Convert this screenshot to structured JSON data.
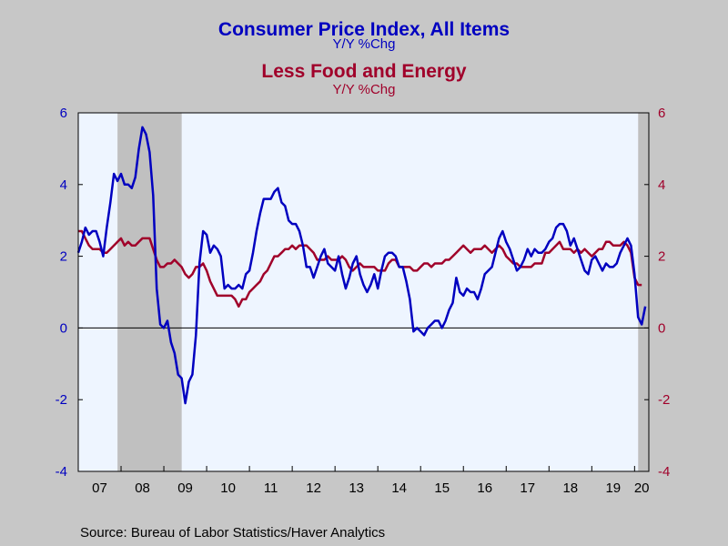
{
  "chart_data": {
    "type": "line",
    "title": "Consumer Price Index, All Items",
    "title_subtitle": "Y/Y %Chg",
    "title2": "Less Food and Energy",
    "title2_subtitle": "Y/Y %Chg",
    "source": "Source:  Bureau of Labor Statistics/Haver Analytics",
    "ylim_left": [
      -4,
      6
    ],
    "ylim_right": [
      -4,
      6
    ],
    "yticks_left": [
      "6",
      "4",
      "2",
      "0",
      "-2",
      "-4"
    ],
    "yticks_right": [
      "6",
      "4",
      "2",
      "0",
      "-2",
      "-4"
    ],
    "xlim": [
      2007.0,
      2020.333
    ],
    "x_tick_labels": [
      "07",
      "08",
      "09",
      "10",
      "11",
      "12",
      "13",
      "14",
      "15",
      "16",
      "17",
      "18",
      "19",
      "20"
    ],
    "grid": false,
    "zero_line": true,
    "recession_shading": [
      [
        2007.917,
        2009.417
      ],
      [
        2020.083,
        2020.417
      ]
    ],
    "colors": {
      "cpi": "#0000c0",
      "core": "#a0002a",
      "plot_bg": "#eef5ff",
      "recession": "#c0c0c0",
      "page_bg": "#c7c7c7"
    },
    "series": [
      {
        "name": "Consumer Price Index, All Items",
        "axis": "left",
        "color": "#0000c0",
        "start": 2007.0,
        "step": 0.08333,
        "values": [
          2.1,
          2.4,
          2.8,
          2.6,
          2.7,
          2.7,
          2.4,
          2.0,
          2.8,
          3.5,
          4.3,
          4.1,
          4.3,
          4.0,
          4.0,
          3.9,
          4.2,
          5.0,
          5.6,
          5.4,
          4.9,
          3.7,
          1.1,
          0.1,
          0.0,
          0.2,
          -0.4,
          -0.7,
          -1.3,
          -1.4,
          -2.1,
          -1.5,
          -1.3,
          -0.2,
          1.8,
          2.7,
          2.6,
          2.1,
          2.3,
          2.2,
          2.0,
          1.1,
          1.2,
          1.1,
          1.1,
          1.2,
          1.1,
          1.5,
          1.6,
          2.1,
          2.7,
          3.2,
          3.6,
          3.6,
          3.6,
          3.8,
          3.9,
          3.5,
          3.4,
          3.0,
          2.9,
          2.9,
          2.7,
          2.3,
          1.7,
          1.7,
          1.4,
          1.7,
          2.0,
          2.2,
          1.8,
          1.7,
          1.6,
          2.0,
          1.5,
          1.1,
          1.4,
          1.8,
          2.0,
          1.5,
          1.2,
          1.0,
          1.2,
          1.5,
          1.1,
          1.6,
          2.0,
          2.1,
          2.1,
          2.0,
          1.7,
          1.7,
          1.3,
          0.8,
          -0.1,
          0.0,
          -0.1,
          -0.2,
          0.0,
          0.1,
          0.2,
          0.2,
          0.0,
          0.2,
          0.5,
          0.7,
          1.4,
          1.0,
          0.9,
          1.1,
          1.0,
          1.0,
          0.8,
          1.1,
          1.5,
          1.6,
          1.7,
          2.1,
          2.5,
          2.7,
          2.4,
          2.2,
          1.9,
          1.6,
          1.7,
          1.9,
          2.2,
          2.0,
          2.2,
          2.1,
          2.1,
          2.2,
          2.4,
          2.5,
          2.8,
          2.9,
          2.9,
          2.7,
          2.3,
          2.5,
          2.2,
          1.9,
          1.6,
          1.5,
          1.9,
          2.0,
          1.8,
          1.6,
          1.8,
          1.7,
          1.7,
          1.8,
          2.1,
          2.3,
          2.5,
          2.3,
          1.5,
          0.3,
          0.1,
          0.6
        ]
      },
      {
        "name": "Less Food and Energy",
        "axis": "right",
        "color": "#a0002a",
        "start": 2007.0,
        "step": 0.08333,
        "values": [
          2.7,
          2.7,
          2.5,
          2.3,
          2.2,
          2.2,
          2.2,
          2.1,
          2.1,
          2.2,
          2.3,
          2.4,
          2.5,
          2.3,
          2.4,
          2.3,
          2.3,
          2.4,
          2.5,
          2.5,
          2.5,
          2.2,
          1.9,
          1.7,
          1.7,
          1.8,
          1.8,
          1.9,
          1.8,
          1.7,
          1.5,
          1.4,
          1.5,
          1.7,
          1.7,
          1.8,
          1.6,
          1.3,
          1.1,
          0.9,
          0.9,
          0.9,
          0.9,
          0.9,
          0.8,
          0.6,
          0.8,
          0.8,
          1.0,
          1.1,
          1.2,
          1.3,
          1.5,
          1.6,
          1.8,
          2.0,
          2.0,
          2.1,
          2.2,
          2.2,
          2.3,
          2.2,
          2.3,
          2.3,
          2.3,
          2.2,
          2.1,
          1.9,
          1.9,
          1.9,
          2.0,
          1.9,
          1.9,
          1.9,
          2.0,
          1.9,
          1.7,
          1.6,
          1.7,
          1.8,
          1.7,
          1.7,
          1.7,
          1.7,
          1.6,
          1.6,
          1.6,
          1.8,
          1.9,
          1.9,
          1.7,
          1.7,
          1.7,
          1.7,
          1.6,
          1.6,
          1.7,
          1.8,
          1.8,
          1.7,
          1.8,
          1.8,
          1.8,
          1.9,
          1.9,
          2.0,
          2.1,
          2.2,
          2.3,
          2.2,
          2.1,
          2.2,
          2.2,
          2.2,
          2.3,
          2.2,
          2.1,
          2.2,
          2.3,
          2.2,
          2.0,
          1.9,
          1.8,
          1.8,
          1.7,
          1.7,
          1.7,
          1.7,
          1.8,
          1.8,
          1.8,
          2.1,
          2.1,
          2.2,
          2.3,
          2.4,
          2.2,
          2.2,
          2.2,
          2.1,
          2.2,
          2.1,
          2.2,
          2.1,
          2.0,
          2.1,
          2.2,
          2.2,
          2.4,
          2.4,
          2.3,
          2.3,
          2.3,
          2.4,
          2.3,
          2.1,
          1.4,
          1.2,
          1.2
        ]
      }
    ]
  }
}
